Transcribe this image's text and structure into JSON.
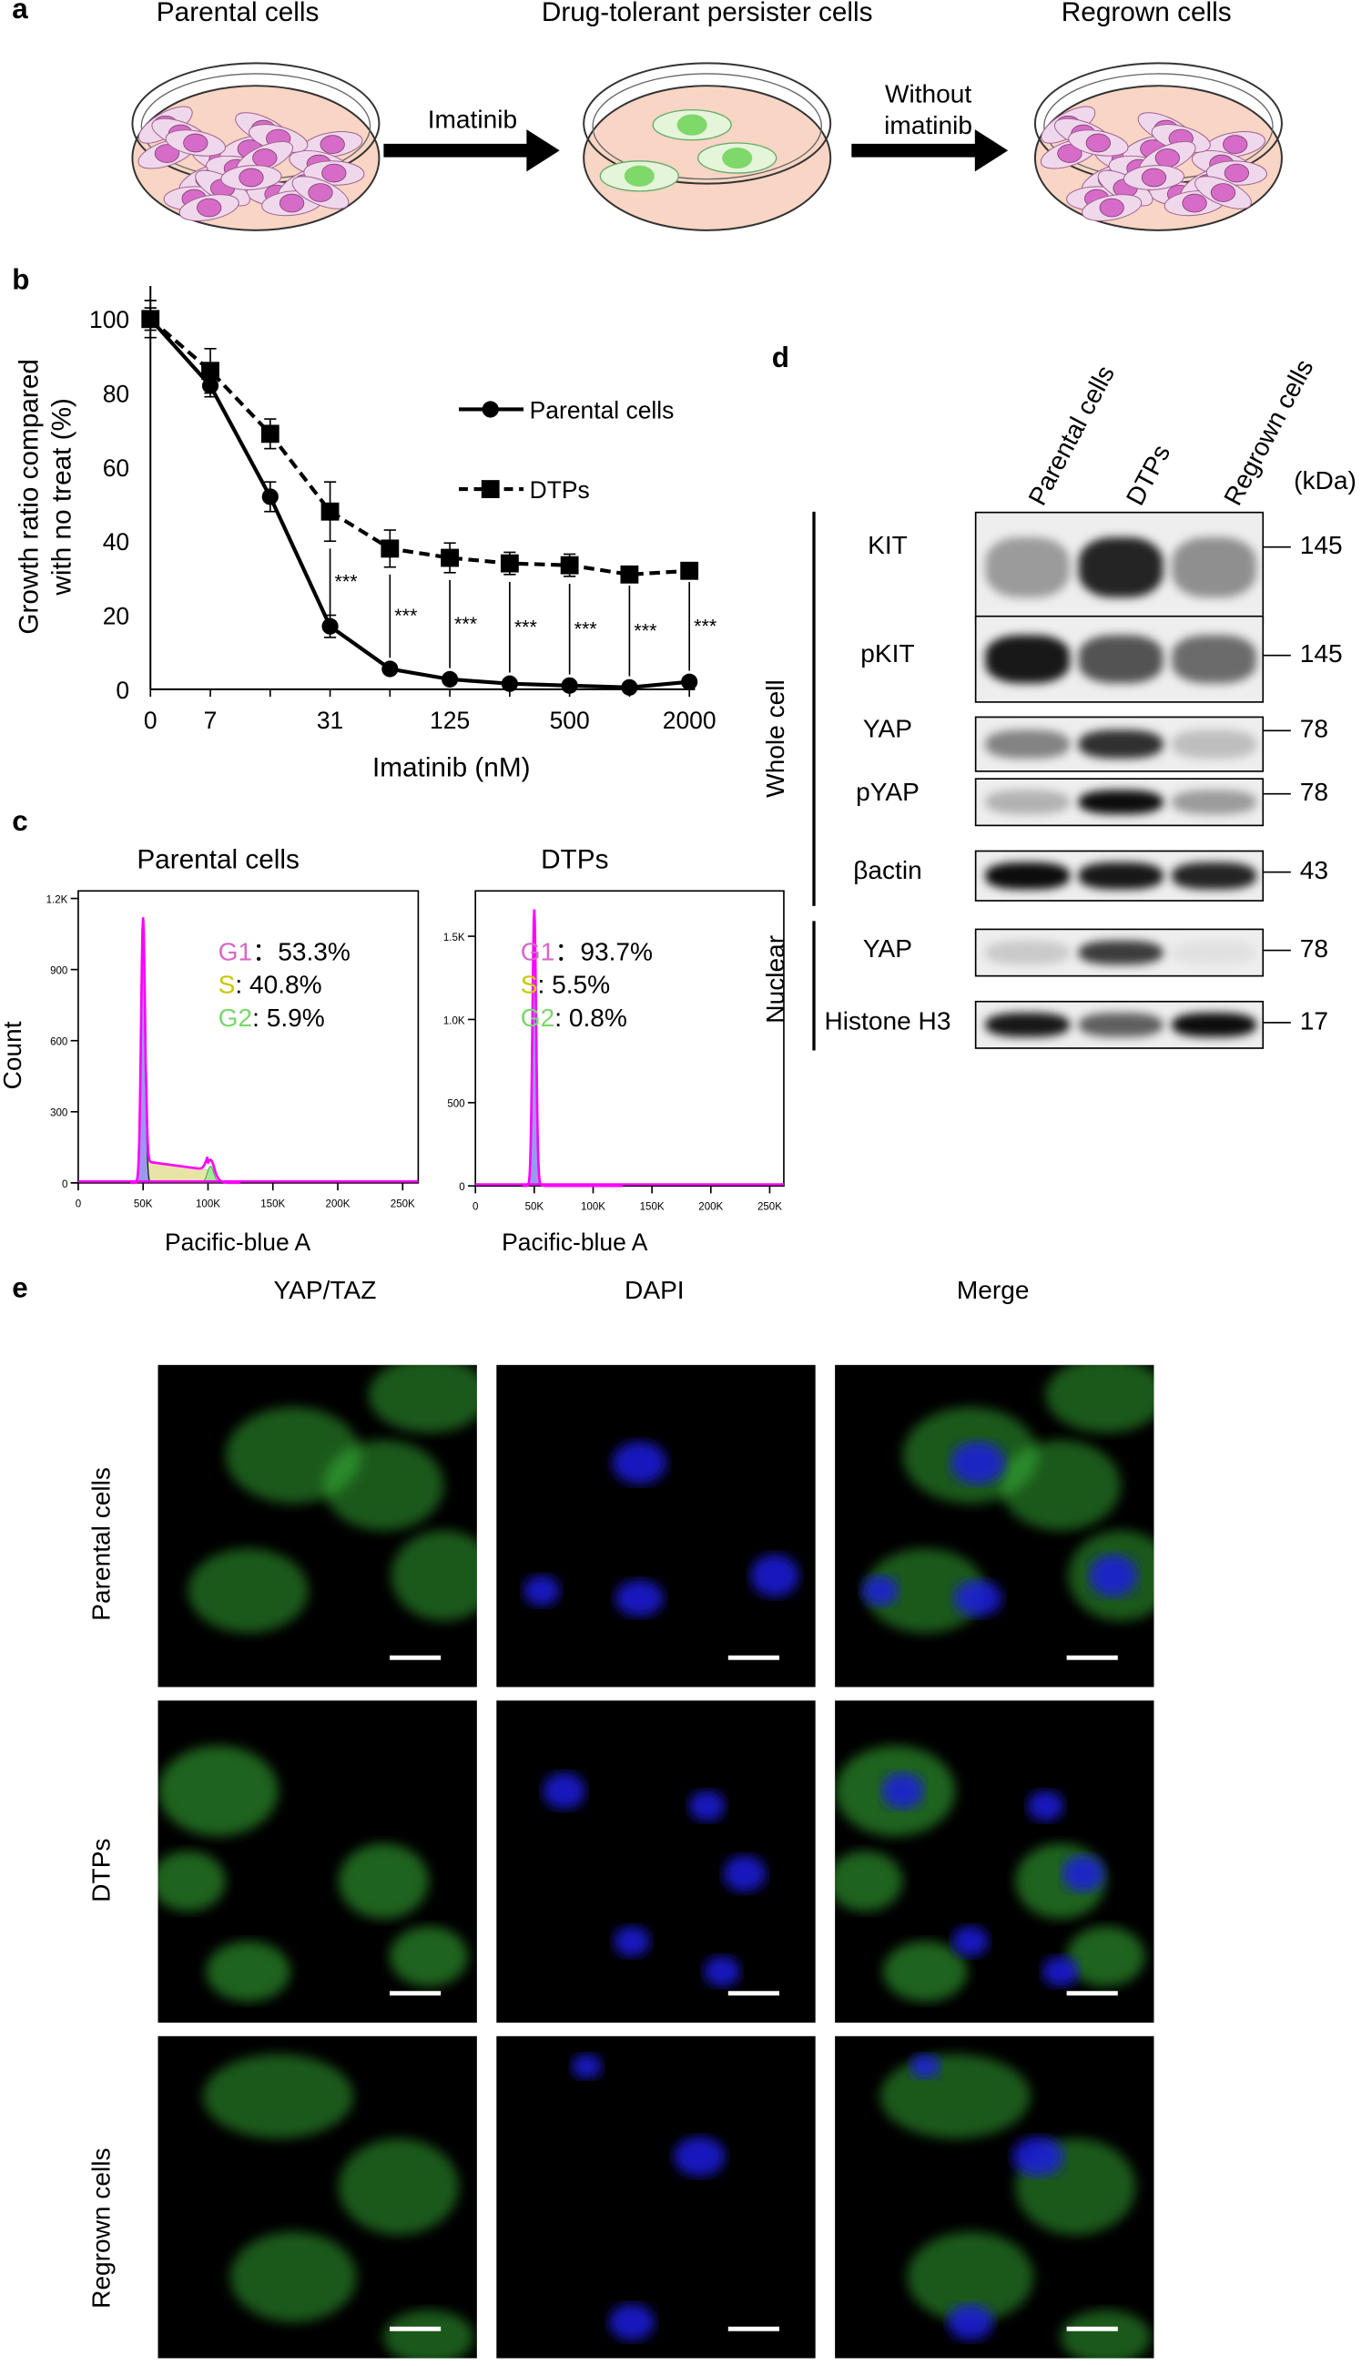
{
  "panel_a": {
    "label": "a",
    "titles": [
      "Parental cells",
      "Drug-tolerant persister cells",
      "Regrown cells"
    ],
    "arrow1_label": "Imatinib",
    "arrow2_label_line1": "Without",
    "arrow2_label_line2": "imatinib",
    "colors": {
      "dish_medium": "#f8d5c4",
      "parental_cell": "#d66cc8",
      "dtp_cell": "#7fd86a"
    }
  },
  "panel_b": {
    "label": "b",
    "significance": "***"
  },
  "panel_c": {
    "label": "c",
    "count_label": "Count",
    "plots": [
      {
        "title": "Parental cells",
        "xlabel": "Pacific-blue A",
        "yticks": [
          "0",
          "300",
          "600",
          "900",
          "1.2K"
        ],
        "xticks": [
          "0",
          "50K",
          "100K",
          "150K",
          "200K",
          "250K"
        ],
        "g1": "G1",
        "g1_val": "：53.3%",
        "s": "S",
        "s_val": ": 40.8%",
        "g2": "G2",
        "g2_val": ": 5.9%"
      },
      {
        "title": "DTPs",
        "xlabel": "Pacific-blue A",
        "yticks": [
          "0",
          "500",
          "1.0K",
          "1.5K"
        ],
        "xticks": [
          "0",
          "50K",
          "100K",
          "150K",
          "200K",
          "250K"
        ],
        "g1": "G1",
        "g1_val": "：93.7%",
        "s": "S",
        "s_val": ": 5.5%",
        "g2": "G2",
        "g2_val": ": 0.8%"
      }
    ],
    "colors": {
      "g1": "#d966c8",
      "s": "#c8c800",
      "g2": "#7ad66e",
      "trace": "#ff00ff",
      "fill_g1": "#9999ee",
      "fill_s": "#e8e4a8"
    }
  },
  "panel_d": {
    "label": "d",
    "lanes": [
      "Parental cells",
      "DTPs",
      "Regrown cells"
    ],
    "kda": "(kDa)",
    "group_whole": "Whole cell",
    "group_nuclear": "Nuclear",
    "blots": [
      {
        "name": "KIT",
        "kda": "145"
      },
      {
        "name": "pKIT",
        "kda": "145"
      },
      {
        "name": "YAP",
        "kda": "78"
      },
      {
        "name": "pYAP",
        "kda": "78"
      },
      {
        "name": "βactin",
        "kda": "43"
      },
      {
        "name": "YAP",
        "kda": "78"
      },
      {
        "name": "Histone H3",
        "kda": "17"
      }
    ]
  },
  "panel_e": {
    "label": "e",
    "columns": [
      "YAP/TAZ",
      "DAPI",
      "Merge"
    ],
    "rows": [
      "Parental cells",
      "DTPs",
      "Regrown cells"
    ],
    "colors": {
      "yap": "#3ec53e",
      "dapi": "#1a1ae0"
    }
  },
  "chart_data": [
    {
      "type": "line",
      "title": "",
      "xlabel": "Imatinib (nM)",
      "ylabel": "Growth ratio compared with no treat (%)",
      "x": [
        0,
        7,
        15,
        31,
        62,
        125,
        250,
        500,
        1000,
        2000
      ],
      "xtick_labels": [
        "0",
        "7",
        "",
        "31",
        "",
        "125",
        "",
        "500",
        "",
        "2000"
      ],
      "yticks": [
        0,
        20,
        40,
        60,
        80,
        100
      ],
      "ylim": [
        0,
        110
      ],
      "grid": false,
      "legend": "top-right",
      "series": [
        {
          "name": "Parental cells",
          "style": "solid",
          "marker": "circle",
          "values": [
            100,
            82,
            52,
            17,
            5.5,
            2.7,
            1.5,
            1,
            0.5,
            2
          ],
          "errors": [
            5,
            3,
            4,
            3,
            1,
            1,
            0.5,
            0.5,
            0.5,
            0.5
          ]
        },
        {
          "name": "DTPs",
          "style": "dashed",
          "marker": "square",
          "values": [
            100,
            86,
            69,
            48,
            38,
            35.5,
            34,
            33.5,
            31,
            32
          ],
          "errors": [
            3,
            6,
            4,
            8,
            5,
            4,
            3,
            3,
            1,
            1
          ]
        }
      ],
      "significant_points": [
        31,
        62,
        125,
        250,
        500,
        1000,
        2000
      ]
    },
    {
      "type": "area",
      "title": "Parental cells",
      "xlabel": "Pacific-blue A",
      "ylabel": "Count",
      "xlim": [
        0,
        262000
      ],
      "ylim": [
        0,
        1200
      ],
      "phases": {
        "G1": 53.3,
        "S": 40.8,
        "G2": 5.9
      },
      "g1_peak": {
        "x": 50000,
        "count": 1120
      },
      "g2_peak": {
        "x": 100000,
        "count": 80
      }
    },
    {
      "type": "area",
      "title": "DTPs",
      "xlabel": "Pacific-blue A",
      "ylabel": "Count",
      "xlim": [
        0,
        262000
      ],
      "ylim": [
        0,
        1700
      ],
      "phases": {
        "G1": 93.7,
        "S": 5.5,
        "G2": 0.8
      },
      "g1_peak": {
        "x": 50000,
        "count": 1660
      }
    }
  ]
}
